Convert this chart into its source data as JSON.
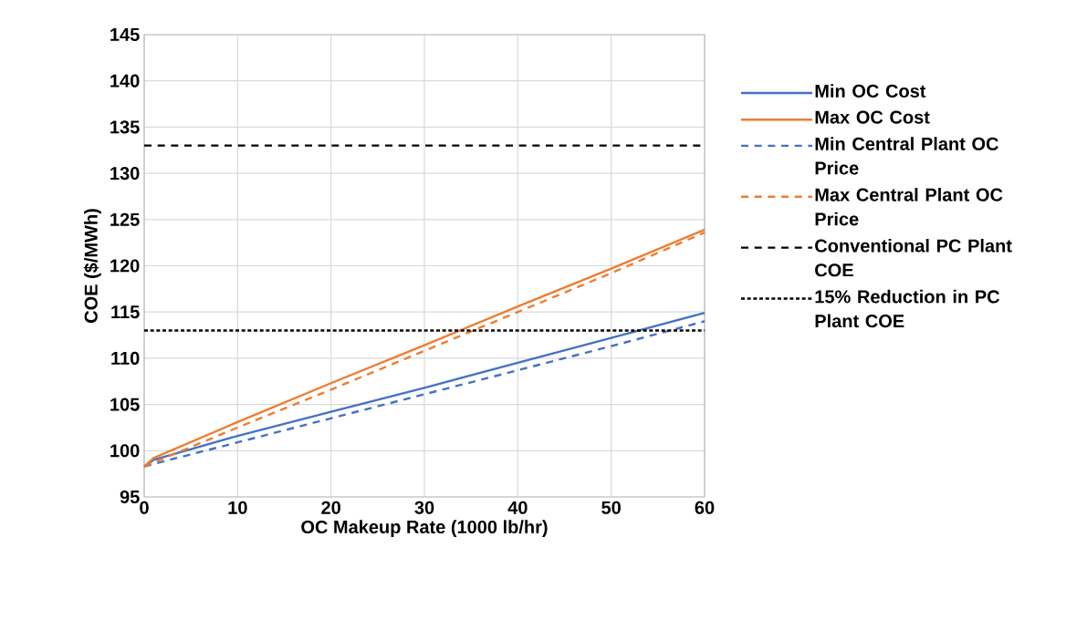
{
  "chart_data": {
    "type": "line",
    "xlabel": "OC Makeup Rate (1000 lb/hr)",
    "ylabel": "COE ($/MWh)",
    "xlim": [
      0,
      60
    ],
    "ylim": [
      95,
      145
    ],
    "xticks": [
      0,
      10,
      20,
      30,
      40,
      50,
      60
    ],
    "yticks": [
      95,
      100,
      105,
      110,
      115,
      120,
      125,
      130,
      135,
      140,
      145
    ],
    "grid": true,
    "legend": "right",
    "marker": "none",
    "series": [
      {
        "name": "Min OC Cost",
        "color": "#4472c4",
        "line_style": "solid",
        "x": [
          0,
          1,
          10,
          20,
          30,
          40,
          50,
          60
        ],
        "values": [
          98.3,
          99.0,
          101.6,
          104.2,
          106.8,
          109.5,
          112.2,
          114.9
        ]
      },
      {
        "name": "Max OC Cost",
        "color": "#ed7d31",
        "line_style": "solid",
        "x": [
          0,
          1,
          10,
          20,
          30,
          40,
          50,
          60
        ],
        "values": [
          98.3,
          99.2,
          103.1,
          107.3,
          111.4,
          115.6,
          119.7,
          123.9
        ]
      },
      {
        "name": "Min Central Plant OC Price",
        "color": "#4472c4",
        "line_style": "dashed",
        "x": [
          0,
          10,
          20,
          30,
          40,
          50,
          60
        ],
        "values": [
          98.3,
          100.9,
          103.5,
          106.1,
          108.7,
          111.3,
          114.0
        ]
      },
      {
        "name": "Max Central Plant OC Price",
        "color": "#ed7d31",
        "line_style": "dashed",
        "x": [
          0,
          10,
          20,
          30,
          40,
          50,
          60
        ],
        "values": [
          98.3,
          102.5,
          106.6,
          110.8,
          115.0,
          119.2,
          123.6
        ]
      },
      {
        "name": "Conventional PC Plant COE",
        "color": "#000000",
        "line_style": "dashed",
        "x": [
          0,
          60
        ],
        "values": [
          133,
          133
        ]
      },
      {
        "name": "15% Reduction in PC Plant COE",
        "color": "#000000",
        "line_style": "dotted",
        "x": [
          0,
          60
        ],
        "values": [
          113,
          113
        ]
      }
    ]
  }
}
